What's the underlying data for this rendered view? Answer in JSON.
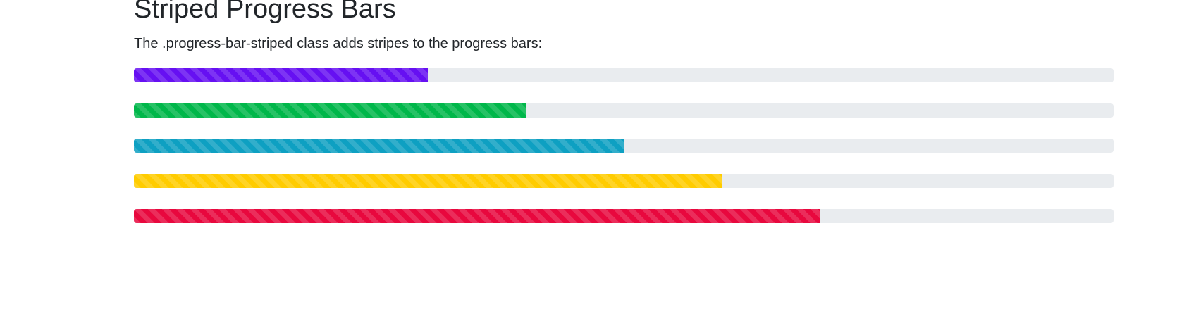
{
  "header": {
    "title": "Striped Progress Bars",
    "description": "The .progress-bar-striped class adds stripes to the progress bars:"
  },
  "progress_bars": [
    {
      "value": 30,
      "color": "#6610f2"
    },
    {
      "value": 40,
      "color": "#00b74a"
    },
    {
      "value": 50,
      "color": "#0ea0c2"
    },
    {
      "value": 60,
      "color": "#ffcc00"
    },
    {
      "value": 70,
      "color": "#e8083e"
    }
  ]
}
